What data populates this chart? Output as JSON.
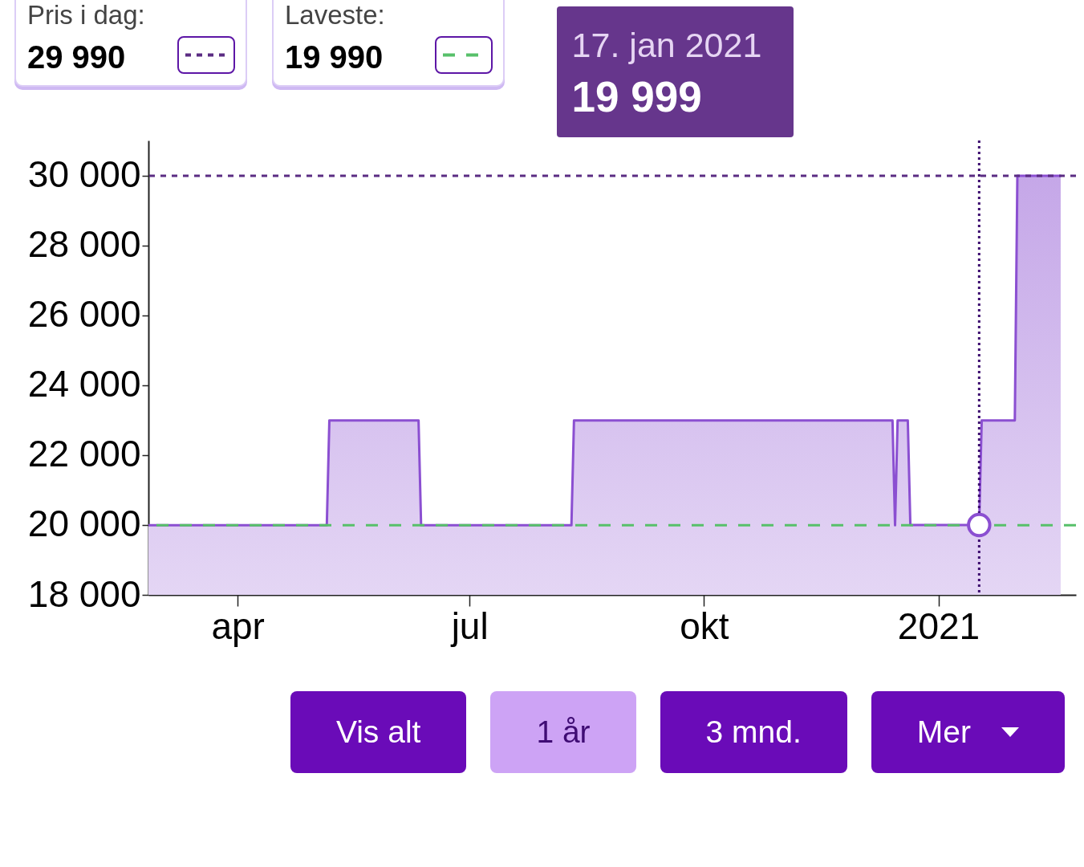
{
  "chart_data": {
    "type": "area",
    "x": [
      "2020-02-26",
      "2020-05-06",
      "2020-05-07",
      "2020-06-11",
      "2020-06-12",
      "2020-08-10",
      "2020-08-11",
      "2020-12-14",
      "2020-12-15",
      "2020-12-16",
      "2020-12-20",
      "2020-12-21",
      "2021-01-17",
      "2021-01-18",
      "2021-01-31",
      "2021-02-01",
      "2021-02-18"
    ],
    "series": [
      {
        "color": "#8b4fd1",
        "values": [
          19990,
          19990,
          22990,
          22990,
          19990,
          19990,
          22990,
          22990,
          19990,
          22990,
          22990,
          19999,
          19999,
          22990,
          22990,
          29990,
          29990
        ]
      },
      {
        "type": "scatter",
        "x": [
          "2021-01-17"
        ],
        "color": "#8b4fd1",
        "values": [
          19999
        ]
      }
    ],
    "xlim": [
      "2020-02-26",
      "2021-02-24"
    ],
    "xticks": [
      {
        "value": "2020-04-01",
        "label": "apr"
      },
      {
        "value": "2020-07-01",
        "label": "jul"
      },
      {
        "value": "2020-10-01",
        "label": "okt"
      },
      {
        "value": "2021-01-01",
        "label": "2021"
      }
    ],
    "ylim": [
      18000,
      31000
    ],
    "yticks": [
      {
        "value": 18000,
        "label": "18 000"
      },
      {
        "value": 20000,
        "label": "20 000"
      },
      {
        "value": 22000,
        "label": "22 000"
      },
      {
        "value": 24000,
        "label": "24 000"
      },
      {
        "value": 26000,
        "label": "26 000"
      },
      {
        "value": 28000,
        "label": "28 000"
      },
      {
        "value": 30000,
        "label": "30 000"
      }
    ],
    "ref_lines": [
      {
        "axis": "y",
        "value": 29990,
        "label": "29 990",
        "color": "#5b2c83",
        "line_style": "dotted"
      },
      {
        "axis": "y",
        "value": 19990,
        "label": "19 990",
        "color": "#57c06a",
        "line_style": "dashed"
      },
      {
        "axis": "x",
        "value": "2021-01-17",
        "color": "#3b0a6e",
        "line_style": "dotted"
      }
    ],
    "annotations": [
      "Pris i dag:",
      "Laveste:",
      "17. jan 2021",
      "19 999",
      "Vis alt",
      "1 år",
      "3 mnd.",
      "Mer"
    ],
    "legend": "top left",
    "grid": false
  }
}
